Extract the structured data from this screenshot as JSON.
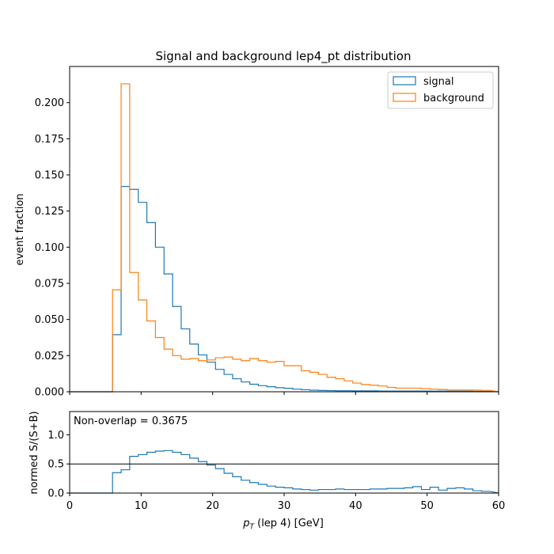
{
  "chart_data": [
    {
      "type": "histogram-step",
      "title": "Signal and background lep4_pt distribution",
      "xlabel": "p_T (lep 4) [GeV]",
      "ylabel": "event fraction",
      "xlim": [
        0,
        60
      ],
      "ylim": [
        0,
        0.225
      ],
      "yticks": [
        "0.000",
        "0.025",
        "0.050",
        "0.075",
        "0.100",
        "0.125",
        "0.150",
        "0.175",
        "0.200"
      ],
      "ytick_values": [
        0,
        0.025,
        0.05,
        0.075,
        0.1,
        0.125,
        0.15,
        0.175,
        0.2
      ],
      "legend_position": "upper right",
      "bin_edges": [
        0,
        6,
        7.2,
        8.4,
        9.6,
        10.8,
        12,
        13.2,
        14.4,
        15.6,
        16.8,
        18,
        19.2,
        20.4,
        21.6,
        22.8,
        24,
        25.2,
        26.4,
        27.6,
        28.8,
        30,
        31.2,
        32.4,
        33.6,
        34.8,
        36,
        37.2,
        38.4,
        39.6,
        40.8,
        42,
        43.2,
        44.4,
        45.6,
        46.8,
        48,
        49.2,
        50.4,
        51.6,
        52.8,
        54,
        55.2,
        56.4,
        57.6,
        58.8,
        60
      ],
      "series": [
        {
          "name": "signal",
          "color": "#1f77b4",
          "values": [
            0,
            0.0395,
            0.142,
            0.14,
            0.131,
            0.117,
            0.1,
            0.0815,
            0.059,
            0.0435,
            0.033,
            0.0255,
            0.0205,
            0.0155,
            0.012,
            0.009,
            0.0068,
            0.0052,
            0.0042,
            0.0035,
            0.0028,
            0.0024,
            0.0018,
            0.0014,
            0.0011,
            0.0009,
            0.0008,
            0.0007,
            0.0007,
            0.0006,
            0.0006,
            0.0006,
            0.0005,
            0.0005,
            0.0005,
            0.0005,
            0.0005,
            0.0005,
            0.0004,
            0.0004,
            0.0004,
            0.0004,
            0.0004,
            0.0003,
            0.0003
          ]
        },
        {
          "name": "background",
          "color": "#ff7f0e",
          "values": [
            0,
            0.0705,
            0.213,
            0.0825,
            0.0635,
            0.049,
            0.0375,
            0.0295,
            0.025,
            0.0225,
            0.023,
            0.0215,
            0.022,
            0.0235,
            0.024,
            0.0225,
            0.0215,
            0.023,
            0.0215,
            0.0205,
            0.021,
            0.018,
            0.018,
            0.0145,
            0.0135,
            0.012,
            0.01,
            0.009,
            0.0075,
            0.006,
            0.005,
            0.0045,
            0.004,
            0.003,
            0.0025,
            0.0025,
            0.0025,
            0.0022,
            0.0018,
            0.0015,
            0.0012,
            0.0012,
            0.0012,
            0.0011,
            0.001
          ]
        }
      ]
    },
    {
      "type": "histogram-step",
      "xlabel": "p_T (lep 4) [GeV]",
      "ylabel": "normed S/(S+B)",
      "xlim": [
        0,
        60
      ],
      "ylim": [
        0,
        1.4
      ],
      "xticks": [
        "0",
        "10",
        "20",
        "30",
        "40",
        "50",
        "60"
      ],
      "xtick_values": [
        0,
        10,
        20,
        30,
        40,
        50,
        60
      ],
      "yticks": [
        "0.0",
        "0.5",
        "1.0"
      ],
      "ytick_values": [
        0,
        0.5,
        1.0
      ],
      "reference_line": 0.5,
      "annotation": "Non-overlap = 0.3675",
      "series": [
        {
          "name": "normed S/(S+B)",
          "color": "#1f77b4",
          "values": [
            0,
            0.35,
            0.4,
            0.63,
            0.66,
            0.7,
            0.72,
            0.73,
            0.7,
            0.66,
            0.6,
            0.54,
            0.48,
            0.42,
            0.34,
            0.28,
            0.22,
            0.18,
            0.15,
            0.12,
            0.1,
            0.09,
            0.07,
            0.06,
            0.05,
            0.06,
            0.06,
            0.07,
            0.06,
            0.06,
            0.06,
            0.07,
            0.07,
            0.08,
            0.08,
            0.09,
            0.11,
            0.06,
            0.1,
            0.05,
            0.08,
            0.09,
            0.07,
            0.04,
            0.03
          ]
        }
      ]
    }
  ]
}
